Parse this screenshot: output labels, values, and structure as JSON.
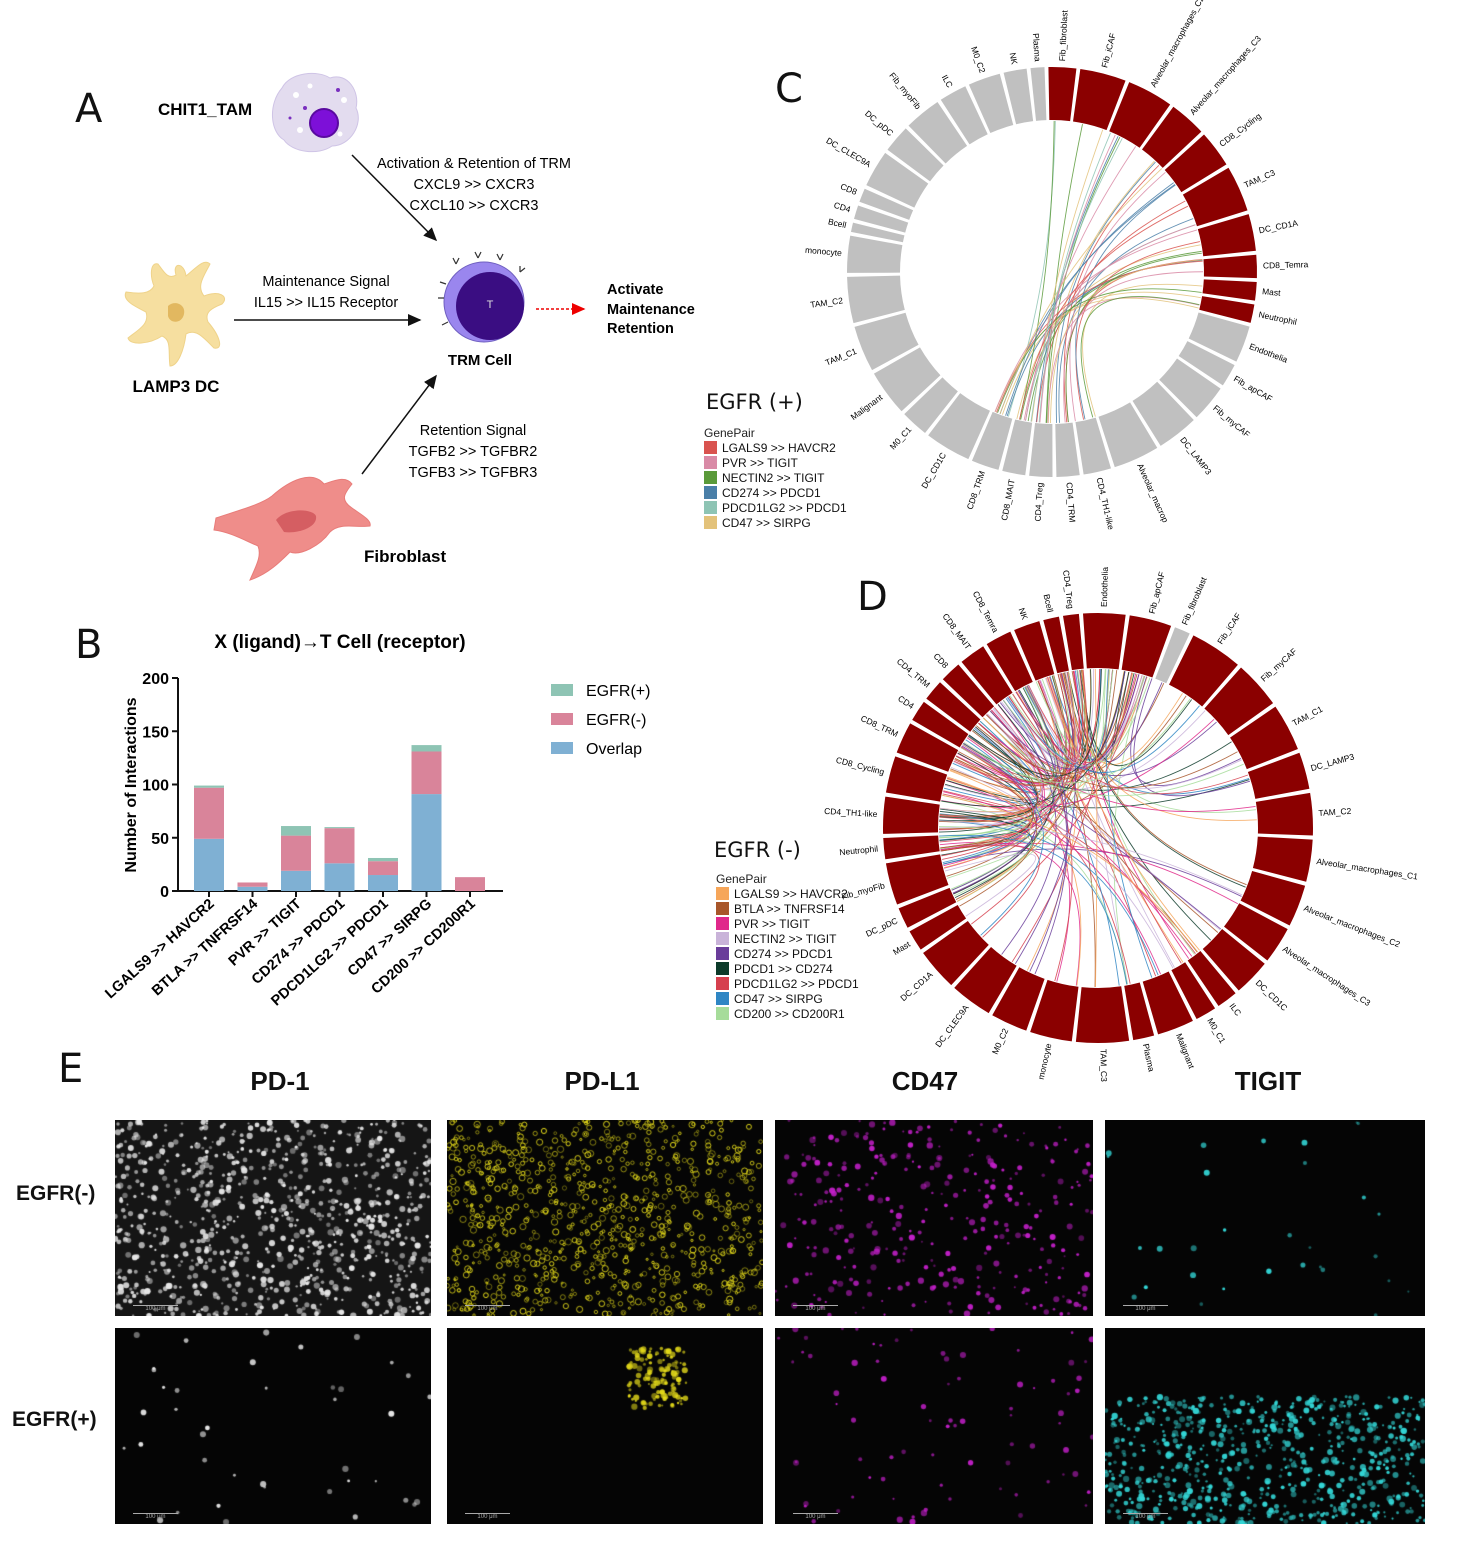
{
  "panels": {
    "A": "A",
    "B": "B",
    "C": "C",
    "D": "D",
    "E": "E"
  },
  "panelA": {
    "tam_label": "CHIT1_TAM",
    "dc_label": "LAMP3 DC",
    "fib_label": "Fibroblast",
    "trm_label": "TRM Cell",
    "t_letter": "T",
    "tam_signal": [
      "Activation & Retention of TRM",
      "CXCL9 >> CXCR3",
      "CXCL10 >> CXCR3"
    ],
    "dc_signal": [
      "Maintenance Signal",
      "IL15 >> IL15 Receptor"
    ],
    "fib_signal": [
      "Retention Signal",
      "TGFB2 >> TGFBR2",
      "TGFB3 >> TGFBR3"
    ],
    "outcome": [
      "Activate",
      "Maintenance",
      "Retention"
    ]
  },
  "chart_data": {
    "type": "bar",
    "stacked": true,
    "title": "X (ligand)→T Cell (receptor)",
    "xlabel": "",
    "ylabel": "Number of Interactions",
    "ylim": [
      0,
      200
    ],
    "yticks": [
      0,
      50,
      100,
      150,
      200
    ],
    "categories": [
      "LGALS9 >> HAVCR2",
      "BTLA >> TNFRSF14",
      "PVR >> TIGIT",
      "CD274 >> PDCD1",
      "PDCD1LG2 >> PDCD1",
      "CD47 >> SIRPG",
      "CD200 >> CD200R1"
    ],
    "series": [
      {
        "name": "Overlap",
        "color": "#7fb0d3",
        "values": [
          49,
          4,
          19,
          26,
          15,
          91,
          0
        ]
      },
      {
        "name": "EGFR(-)",
        "color": "#d9849a",
        "values": [
          48,
          4,
          33,
          33,
          13,
          40,
          13
        ]
      },
      {
        "name": "EGFR(+)",
        "color": "#8ec4b4",
        "values": [
          2,
          0,
          9,
          1,
          3,
          6,
          0
        ]
      }
    ],
    "legend_order": [
      "EGFR(+)",
      "EGFR(-)",
      "Overlap"
    ],
    "legend_position": "right"
  },
  "panelC": {
    "title": "EGFR (+)",
    "legend_header": "GenePair",
    "gene_pairs": [
      {
        "label": "LGALS9 >> HAVCR2",
        "color": "#d9534f"
      },
      {
        "label": "PVR >> TIGIT",
        "color": "#d98aa6"
      },
      {
        "label": "NECTIN2 >> TIGIT",
        "color": "#5a9a3a"
      },
      {
        "label": "CD274 >> PDCD1",
        "color": "#4a7fa8"
      },
      {
        "label": "PDCD1LG2 >> PDCD1",
        "color": "#8ec4b4"
      },
      {
        "label": "CD47 >> SIRPG",
        "color": "#e3c27a"
      }
    ],
    "active_color": "#8b0000",
    "inactive_color": "#c0c0c0",
    "sectors": [
      {
        "name": "Fib_fibroblast",
        "active": true
      },
      {
        "name": "Fib_iCAF",
        "active": true
      },
      {
        "name": "Alveolar_macrophages_C2",
        "active": true
      },
      {
        "name": "Alveolar_macrophages_C3",
        "active": true
      },
      {
        "name": "CD8_Cycling",
        "active": true
      },
      {
        "name": "TAM_C3",
        "active": true
      },
      {
        "name": "DC_CD1A",
        "active": true
      },
      {
        "name": "CD8_Temra",
        "active": true
      },
      {
        "name": "Mast",
        "active": true
      },
      {
        "name": "Neutrophil",
        "active": true
      },
      {
        "name": "Endothelia",
        "active": false
      },
      {
        "name": "Fib_apCAF",
        "active": false
      },
      {
        "name": "Fib_myCAF",
        "active": false
      },
      {
        "name": "DC_LAMP3",
        "active": false
      },
      {
        "name": "Alveolar_macrop",
        "active": false
      },
      {
        "name": "CD4_TH1-like",
        "active": false
      },
      {
        "name": "CD4_TRM",
        "active": false
      },
      {
        "name": "CD4_Treg",
        "active": false
      },
      {
        "name": "CD8_MAIT",
        "active": false
      },
      {
        "name": "CD8_TRM",
        "active": false
      },
      {
        "name": "DC_CD1C",
        "active": false
      },
      {
        "name": "M0_C1",
        "active": false
      },
      {
        "name": "Malignant",
        "active": false
      },
      {
        "name": "TAM_C1",
        "active": false
      },
      {
        "name": "TAM_C2",
        "active": false
      },
      {
        "name": "monocyte",
        "active": false
      },
      {
        "name": "Bcell",
        "active": false
      },
      {
        "name": "CD4",
        "active": false
      },
      {
        "name": "CD8",
        "active": false
      },
      {
        "name": "DC_CLEC9A",
        "active": false
      },
      {
        "name": "DC_pDC",
        "active": false
      },
      {
        "name": "Fib_myoFib",
        "active": false
      },
      {
        "name": "ILC",
        "active": false
      },
      {
        "name": "M0_C2",
        "active": false
      },
      {
        "name": "NK",
        "active": false
      },
      {
        "name": "Plasma",
        "active": false
      }
    ]
  },
  "panelD": {
    "title": "EGFR (-)",
    "legend_header": "GenePair",
    "gene_pairs": [
      {
        "label": "LGALS9 >> HAVCR2",
        "color": "#f6a65a"
      },
      {
        "label": "BTLA >> TNFRSF14",
        "color": "#a8562a"
      },
      {
        "label": "PVR >> TIGIT",
        "color": "#e0288a"
      },
      {
        "label": "NECTIN2 >> TIGIT",
        "color": "#c9b3d9"
      },
      {
        "label": "CD274 >> PDCD1",
        "color": "#6a3d9a"
      },
      {
        "label": "PDCD1 >> CD274",
        "color": "#0d3b2a"
      },
      {
        "label": "PDCD1LG2 >> PDCD1",
        "color": "#d6404e"
      },
      {
        "label": "CD47 >> SIRPG",
        "color": "#2f86c4"
      },
      {
        "label": "CD200 >> CD200R1",
        "color": "#a6dc9a"
      }
    ],
    "active_color": "#8b0000",
    "inactive_color": "#c0c0c0",
    "sectors": [
      {
        "name": "Endothelia",
        "active": true
      },
      {
        "name": "Fib_apCAF",
        "active": true
      },
      {
        "name": "Fib_fibroblast",
        "active": false
      },
      {
        "name": "Fib_iCAF",
        "active": true
      },
      {
        "name": "Fib_myCAF",
        "active": true
      },
      {
        "name": "TAM_C1",
        "active": true
      },
      {
        "name": "DC_LAMP3",
        "active": true
      },
      {
        "name": "TAM_C2",
        "active": true
      },
      {
        "name": "Alveolar_macrophages_C1",
        "active": true
      },
      {
        "name": "Alveolar_macrophages_C2",
        "active": true
      },
      {
        "name": "Alveolar_macrophages_C3",
        "active": true
      },
      {
        "name": "DC_CD1C",
        "active": true
      },
      {
        "name": "ILC",
        "active": true
      },
      {
        "name": "M0_C1",
        "active": true
      },
      {
        "name": "Malignant",
        "active": true
      },
      {
        "name": "Plasma",
        "active": true
      },
      {
        "name": "TAM_C3",
        "active": true
      },
      {
        "name": "monocyte",
        "active": true
      },
      {
        "name": "M0_C2",
        "active": true
      },
      {
        "name": "DC_CLEC9A",
        "active": true
      },
      {
        "name": "DC_CD1A",
        "active": true
      },
      {
        "name": "Mast",
        "active": true
      },
      {
        "name": "DC_pDC",
        "active": true
      },
      {
        "name": "Fib_myoFib",
        "active": true
      },
      {
        "name": "Neutrophil",
        "active": true
      },
      {
        "name": "CD4_TH1-like",
        "active": true
      },
      {
        "name": "CD8_Cycling",
        "active": true
      },
      {
        "name": "CD8_TRM",
        "active": true
      },
      {
        "name": "CD4",
        "active": true
      },
      {
        "name": "CD4_TRM",
        "active": true
      },
      {
        "name": "CD8",
        "active": true
      },
      {
        "name": "CD8_MAIT",
        "active": true
      },
      {
        "name": "CD8_Temra",
        "active": true
      },
      {
        "name": "NK",
        "active": true
      },
      {
        "name": "Bcell",
        "active": true
      },
      {
        "name": "CD4_Treg",
        "active": true
      }
    ]
  },
  "panelE": {
    "columns": [
      {
        "label": "PD-1",
        "color": "#e8e8e8"
      },
      {
        "label": "PD-L1",
        "color": "#e6dc1a"
      },
      {
        "label": "CD47",
        "color": "#c21fc8"
      },
      {
        "label": "TIGIT",
        "color": "#33d6d6"
      }
    ],
    "rows": [
      "EGFR(-)",
      "EGFR(+)"
    ],
    "scale_bar": "100 μm"
  }
}
